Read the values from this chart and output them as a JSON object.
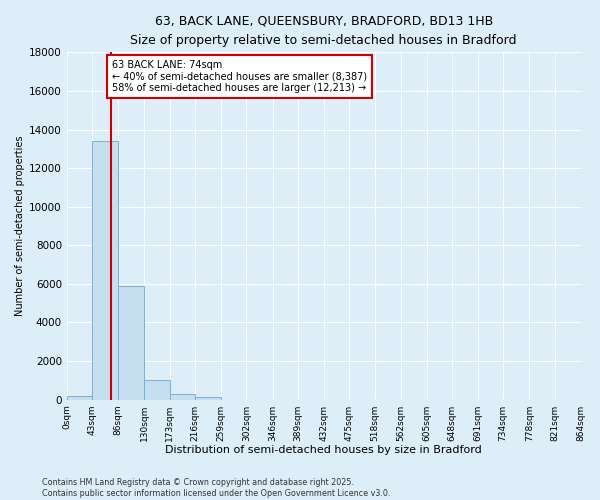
{
  "title": "63, BACK LANE, QUEENSBURY, BRADFORD, BD13 1HB",
  "subtitle": "Size of property relative to semi-detached houses in Bradford",
  "xlabel": "Distribution of semi-detached houses by size in Bradford",
  "ylabel": "Number of semi-detached properties",
  "bins": [
    0,
    43,
    86,
    130,
    173,
    216,
    259,
    302,
    346,
    389,
    432,
    475,
    518,
    562,
    605,
    648,
    691,
    734,
    778,
    821,
    864
  ],
  "bin_labels": [
    "0sqm",
    "43sqm",
    "86sqm",
    "130sqm",
    "173sqm",
    "216sqm",
    "259sqm",
    "302sqm",
    "346sqm",
    "389sqm",
    "432sqm",
    "475sqm",
    "518sqm",
    "562sqm",
    "605sqm",
    "648sqm",
    "691sqm",
    "734sqm",
    "778sqm",
    "821sqm",
    "864sqm"
  ],
  "counts": [
    200,
    13400,
    5900,
    1000,
    300,
    120,
    0,
    0,
    0,
    0,
    0,
    0,
    0,
    0,
    0,
    0,
    0,
    0,
    0,
    0
  ],
  "bar_color": "#c5dff0",
  "bar_edge_color": "#7ab0d4",
  "property_size": 74,
  "property_label": "63 BACK LANE: 74sqm",
  "annotation_line1": "← 40% of semi-detached houses are smaller (8,387)",
  "annotation_line2": "58% of semi-detached houses are larger (12,213) →",
  "annotation_box_color": "#ffffff",
  "annotation_box_edge_color": "#cc0000",
  "vline_color": "#cc0000",
  "ylim": [
    0,
    18000
  ],
  "yticks": [
    0,
    2000,
    4000,
    6000,
    8000,
    10000,
    12000,
    14000,
    16000,
    18000
  ],
  "background_color": "#ddeef8",
  "footer_line1": "Contains HM Land Registry data © Crown copyright and database right 2025.",
  "footer_line2": "Contains public sector information licensed under the Open Government Licence v3.0."
}
